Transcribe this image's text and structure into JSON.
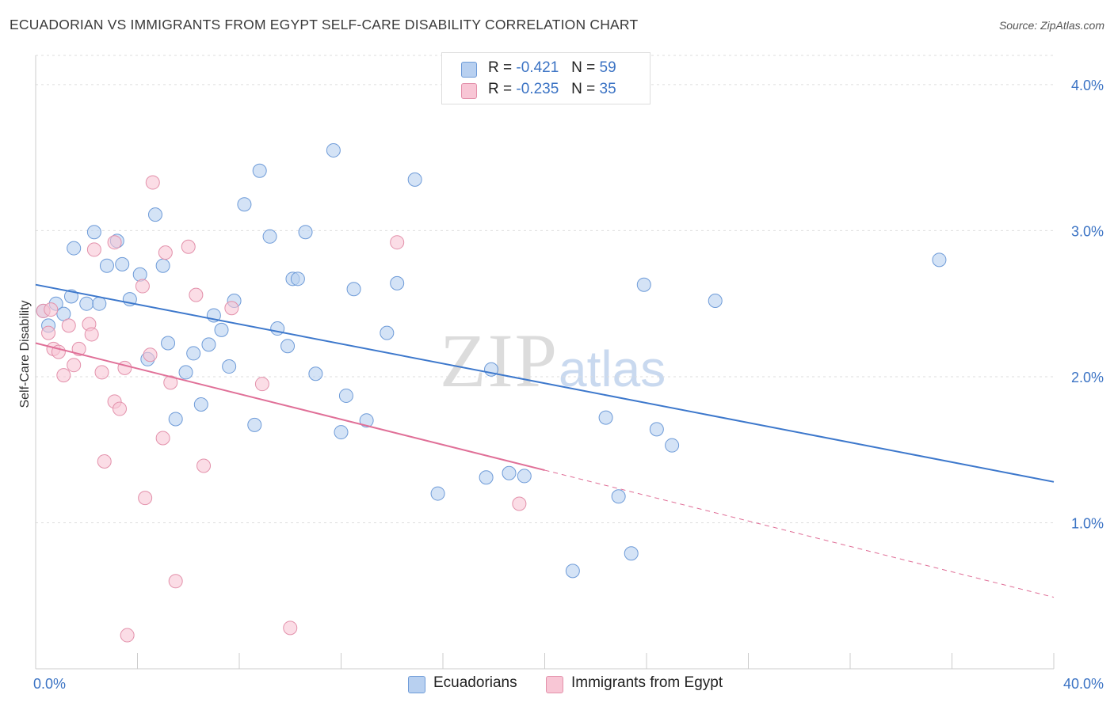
{
  "title": "ECUADORIAN VS IMMIGRANTS FROM EGYPT SELF-CARE DISABILITY CORRELATION CHART",
  "source": "Source: ZipAtlas.com",
  "watermark": {
    "zip": "ZIP",
    "atlas": "atlas"
  },
  "legend": {
    "r_label": "R =",
    "n_label": "N =",
    "series": [
      {
        "r": "-0.421",
        "n": "59"
      },
      {
        "r": "-0.235",
        "n": "35"
      }
    ]
  },
  "bottom_legend": [
    "Ecuadorians",
    "Immigrants from Egypt"
  ],
  "colors": {
    "blue_fill": "#b8d0f0",
    "blue_stroke": "#6e9bd8",
    "blue_line": "#3d78cc",
    "pink_fill": "#f8c6d5",
    "pink_stroke": "#e391ab",
    "pink_line": "#e07098",
    "tick_text": "#3b73c4",
    "grid": "#dddddd"
  },
  "chart_data": {
    "type": "scatter",
    "xlabel": "",
    "ylabel": "Self-Care Disability",
    "xlim": [
      0,
      40
    ],
    "ylim": [
      0,
      4.2
    ],
    "x_tick_labels": [
      {
        "v": 0,
        "label": "0.0%"
      },
      {
        "v": 40,
        "label": "40.0%"
      }
    ],
    "y_tick_labels": [
      {
        "v": 1,
        "label": "1.0%"
      },
      {
        "v": 2,
        "label": "2.0%"
      },
      {
        "v": 3,
        "label": "3.0%"
      },
      {
        "v": 4,
        "label": "4.0%"
      }
    ],
    "x_minor_ticks": [
      0,
      4,
      8,
      12,
      16,
      20,
      24,
      28,
      32,
      36,
      40
    ],
    "grid": true,
    "legend_position": "top-center",
    "series": [
      {
        "name": "Ecuadorians",
        "color": "blue",
        "points": [
          [
            0.3,
            2.45
          ],
          [
            0.5,
            2.35
          ],
          [
            0.8,
            2.5
          ],
          [
            1.1,
            2.43
          ],
          [
            1.4,
            2.55
          ],
          [
            1.5,
            2.88
          ],
          [
            2.0,
            2.5
          ],
          [
            2.3,
            2.99
          ],
          [
            2.5,
            2.5
          ],
          [
            2.8,
            2.76
          ],
          [
            3.2,
            2.93
          ],
          [
            3.4,
            2.77
          ],
          [
            3.7,
            2.53
          ],
          [
            4.1,
            2.7
          ],
          [
            4.4,
            2.12
          ],
          [
            4.7,
            3.11
          ],
          [
            5.0,
            2.76
          ],
          [
            5.2,
            2.23
          ],
          [
            5.5,
            1.71
          ],
          [
            5.9,
            2.03
          ],
          [
            6.2,
            2.16
          ],
          [
            6.5,
            1.81
          ],
          [
            6.8,
            2.22
          ],
          [
            7.0,
            2.42
          ],
          [
            7.3,
            2.32
          ],
          [
            7.6,
            2.07
          ],
          [
            7.8,
            2.52
          ],
          [
            8.2,
            3.18
          ],
          [
            8.6,
            1.67
          ],
          [
            8.8,
            3.41
          ],
          [
            9.2,
            2.96
          ],
          [
            9.5,
            2.33
          ],
          [
            9.9,
            2.21
          ],
          [
            10.1,
            2.67
          ],
          [
            10.3,
            2.67
          ],
          [
            10.6,
            2.99
          ],
          [
            11.0,
            2.02
          ],
          [
            11.7,
            3.55
          ],
          [
            12.0,
            1.62
          ],
          [
            12.2,
            1.87
          ],
          [
            12.5,
            2.6
          ],
          [
            13.0,
            1.7
          ],
          [
            13.8,
            2.3
          ],
          [
            14.2,
            2.64
          ],
          [
            14.9,
            3.35
          ],
          [
            15.8,
            1.2
          ],
          [
            17.7,
            1.31
          ],
          [
            17.9,
            2.05
          ],
          [
            18.6,
            1.34
          ],
          [
            19.2,
            1.32
          ],
          [
            21.1,
            0.67
          ],
          [
            22.4,
            1.72
          ],
          [
            22.9,
            1.18
          ],
          [
            23.4,
            0.79
          ],
          [
            23.9,
            2.63
          ],
          [
            24.4,
            1.64
          ],
          [
            25.0,
            1.53
          ],
          [
            26.7,
            2.52
          ],
          [
            35.5,
            2.8
          ]
        ]
      },
      {
        "name": "Immigrants from Egypt",
        "color": "pink",
        "points": [
          [
            0.3,
            2.45
          ],
          [
            0.5,
            2.3
          ],
          [
            0.7,
            2.19
          ],
          [
            0.9,
            2.17
          ],
          [
            1.1,
            2.01
          ],
          [
            1.3,
            2.35
          ],
          [
            1.5,
            2.08
          ],
          [
            1.7,
            2.19
          ],
          [
            2.1,
            2.36
          ],
          [
            2.2,
            2.29
          ],
          [
            2.3,
            2.87
          ],
          [
            2.6,
            2.03
          ],
          [
            2.7,
            1.42
          ],
          [
            3.1,
            2.92
          ],
          [
            3.1,
            1.83
          ],
          [
            3.3,
            1.78
          ],
          [
            3.5,
            2.06
          ],
          [
            3.6,
            0.23
          ],
          [
            4.2,
            2.62
          ],
          [
            4.3,
            1.17
          ],
          [
            4.5,
            2.15
          ],
          [
            4.6,
            3.33
          ],
          [
            5.0,
            1.58
          ],
          [
            5.1,
            2.85
          ],
          [
            5.3,
            1.96
          ],
          [
            5.5,
            0.6
          ],
          [
            6.0,
            2.89
          ],
          [
            6.3,
            2.56
          ],
          [
            6.6,
            1.39
          ],
          [
            7.7,
            2.47
          ],
          [
            8.9,
            1.95
          ],
          [
            10.0,
            0.28
          ],
          [
            14.2,
            2.92
          ],
          [
            19.0,
            1.13
          ],
          [
            0.6,
            2.46
          ]
        ]
      }
    ],
    "trend_lines": [
      {
        "series": "Ecuadorians",
        "from": [
          0,
          2.63
        ],
        "to": [
          40,
          1.28
        ]
      },
      {
        "series": "Immigrants from Egypt",
        "from": [
          0,
          2.23
        ],
        "to": [
          20,
          1.36
        ],
        "dashed_to": [
          40,
          0.49
        ]
      }
    ]
  }
}
